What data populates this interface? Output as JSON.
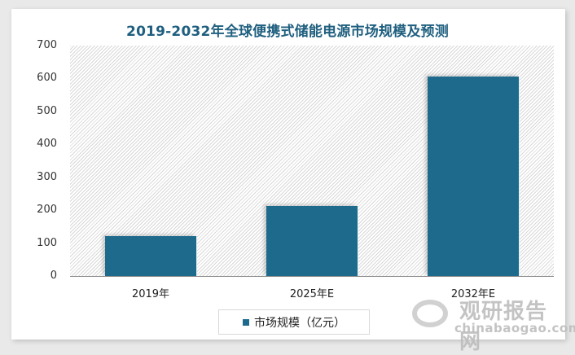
{
  "title": "2019-2032年全球便携式储能电源市场规模及预测",
  "colors": {
    "bar": "#1e6a8d",
    "title": "#1f5f7f"
  },
  "yaxis": {
    "ticks": [
      "0",
      "100",
      "200",
      "300",
      "400",
      "500",
      "600",
      "700"
    ]
  },
  "xaxis": {
    "ticks": [
      "2019年",
      "2025年E",
      "2032年E"
    ]
  },
  "legend": {
    "label": "市场规模（亿元）"
  },
  "watermark": {
    "cn": "观研报告网",
    "en": "chinabaogao.com"
  },
  "chart_data": {
    "type": "bar",
    "title": "2019-2032年全球便携式储能电源市场规模及预测",
    "categories": [
      "2019年",
      "2025年E",
      "2032年E"
    ],
    "series": [
      {
        "name": "市场规模（亿元）",
        "values": [
          120,
          213,
          605
        ]
      }
    ],
    "xlabel": "",
    "ylabel": "",
    "ylim": [
      0,
      700
    ],
    "yticks": [
      0,
      100,
      200,
      300,
      400,
      500,
      600,
      700
    ],
    "grid": false,
    "legend_position": "bottom"
  }
}
